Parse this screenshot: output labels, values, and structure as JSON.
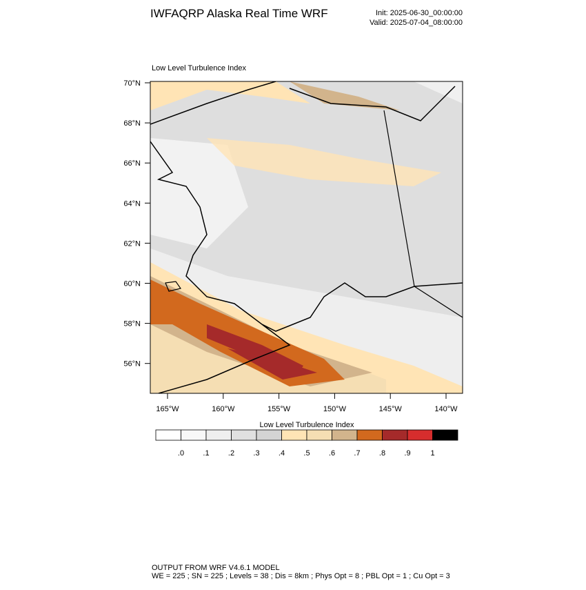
{
  "header": {
    "title": "IWFAQRP Alaska Real Time WRF",
    "init": "Init: 2025-06-30_00:00:00",
    "valid": "Valid: 2025-07-04_08:00:00"
  },
  "map": {
    "title": "Low Level Turbulence Index",
    "lat_labels": [
      "70°N",
      "68°N",
      "66°N",
      "64°N",
      "62°N",
      "60°N",
      "58°N",
      "56°N"
    ],
    "lon_labels": [
      "165°W",
      "160°W",
      "155°W",
      "150°W",
      "145°W",
      "140°W"
    ]
  },
  "colorbar": {
    "title": "Low Level Turbulence Index",
    "colors": [
      "#ffffff",
      "#f8f8f8",
      "#efefef",
      "#e0e0e0",
      "#d4d4d4",
      "#ffe4b5",
      "#f5deb3",
      "#d2b48c",
      "#d2691e",
      "#a52a2a",
      "#d62d2d",
      "#000000"
    ],
    "labels": [
      ".0",
      ".1",
      ".2",
      ".3",
      ".4",
      ".5",
      ".6",
      ".7",
      ".8",
      ".9",
      "1"
    ]
  },
  "footer": {
    "line1": "OUTPUT FROM WRF V4.6.1 MODEL",
    "line2": "WE = 225 ; SN = 225 ; Levels = 38 ; Dis = 8km ; Phys Opt = 8 ; PBL Opt = 1 ; Cu Opt = 3"
  }
}
